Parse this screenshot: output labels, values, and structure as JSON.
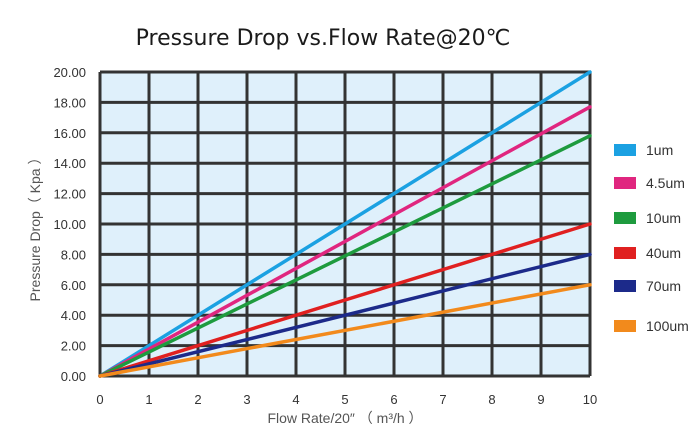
{
  "chart_data": {
    "type": "line",
    "title": "Pressure Drop vs.Flow Rate@20℃",
    "xlabel": "Flow Rate/20″ （ m³/h ）",
    "ylabel": "Pressure Drop（ Kpa ）",
    "xlim": [
      0,
      10
    ],
    "ylim": [
      0,
      20
    ],
    "x_ticks": [
      "0",
      "1",
      "2",
      "3",
      "4",
      "5",
      "6",
      "7",
      "8",
      "9",
      "10"
    ],
    "y_ticks": [
      "0.00",
      "2.00",
      "4.00",
      "6.00",
      "8.00",
      "10.00",
      "12.00",
      "14.00",
      "16.00",
      "18.00",
      "20.00"
    ],
    "grid": true,
    "plot_background": "#dff0fb",
    "grid_color": "#333333",
    "legend_position": "right",
    "series": [
      {
        "name": "1um",
        "color": "#1ba1e2",
        "x": [
          0,
          10
        ],
        "y": [
          0,
          20.0
        ]
      },
      {
        "name": "4.5um",
        "color": "#e0267f",
        "x": [
          0,
          10
        ],
        "y": [
          0,
          17.7
        ]
      },
      {
        "name": "10um",
        "color": "#1e9b3e",
        "x": [
          0,
          10
        ],
        "y": [
          0,
          15.8
        ]
      },
      {
        "name": "40um",
        "color": "#e02020",
        "x": [
          0,
          10
        ],
        "y": [
          0,
          10.0
        ]
      },
      {
        "name": "70um",
        "color": "#1c2a8a",
        "x": [
          0,
          10
        ],
        "y": [
          0,
          8.0
        ]
      },
      {
        "name": "100um",
        "color": "#f28a1c",
        "x": [
          0,
          10
        ],
        "y": [
          0,
          6.0
        ]
      }
    ]
  }
}
